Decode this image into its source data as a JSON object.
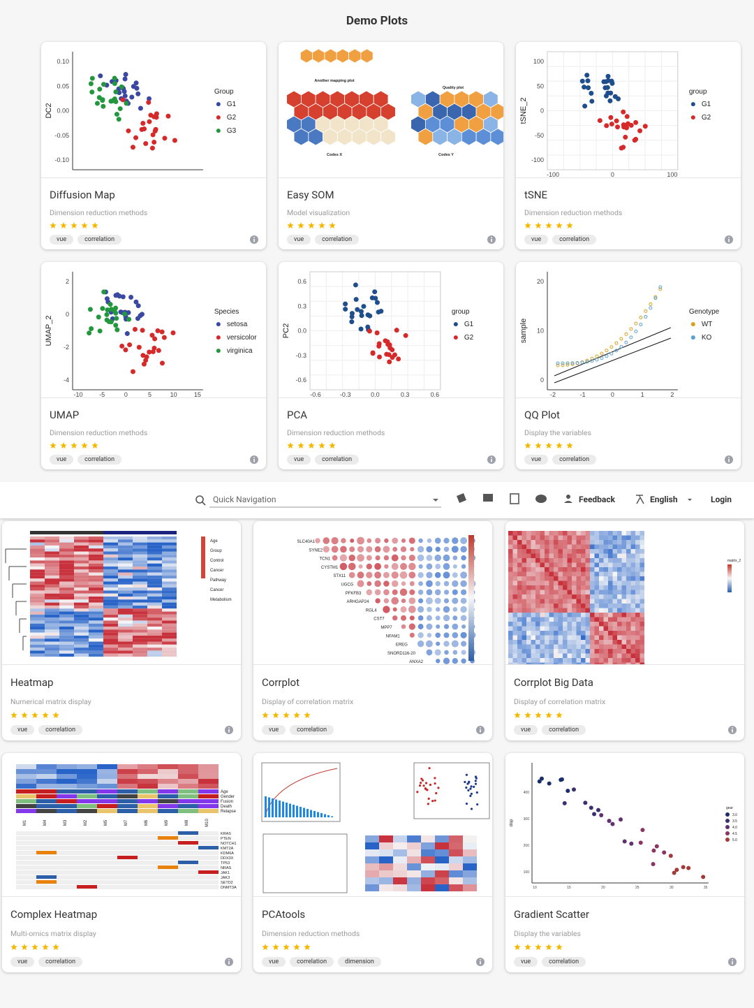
{
  "section_title": "Demo Plots",
  "top_cards": [
    {
      "title": "Diffusion Map",
      "subtitle": "Dimension reduction methods",
      "tags": [
        "vue",
        "correlation"
      ],
      "thumb": {
        "kind": "scatter",
        "ylabel": "DC2",
        "yticks": [
          "0.10",
          "0.05",
          "0.00",
          "-0.05",
          "-0.10"
        ],
        "xticks": [],
        "legend_title": "Group",
        "legend": [
          {
            "label": "G1",
            "color": "#3b48a3"
          },
          {
            "label": "G2",
            "color": "#d62a2a"
          },
          {
            "label": "G3",
            "color": "#23973d"
          }
        ]
      }
    },
    {
      "title": "Easy SOM",
      "subtitle": "Model visualization",
      "tags": [
        "vue",
        "correlation"
      ],
      "thumb": {
        "kind": "som",
        "labels": [
          "Another mapping plot",
          "Quality plot",
          "Codes X",
          "Codes Y"
        ]
      }
    },
    {
      "title": "tSNE",
      "subtitle": "Dimension reduction methods",
      "tags": [
        "vue",
        "correlation"
      ],
      "thumb": {
        "kind": "scatter",
        "grid": true,
        "ylabel": "tSNE_2",
        "yticks": [
          "100",
          "50",
          "0",
          "-50",
          "-100"
        ],
        "xticks": [
          "-100",
          "0",
          "100"
        ],
        "legend_title": "group",
        "legend": [
          {
            "label": "G1",
            "color": "#1f4e8c"
          },
          {
            "label": "G2",
            "color": "#d62a2a"
          }
        ]
      }
    },
    {
      "title": "UMAP",
      "subtitle": "Dimension reduction methods",
      "tags": [
        "vue",
        "correlation"
      ],
      "thumb": {
        "kind": "scatter",
        "ylabel": "UMAP_2",
        "yticks": [
          "2",
          "0",
          "-2",
          "-4"
        ],
        "xticks": [
          "-10",
          "-5",
          "0",
          "5",
          "10",
          "15"
        ],
        "legend_title": "Species",
        "legend": [
          {
            "label": "setosa",
            "color": "#3b48a3"
          },
          {
            "label": "versicolor",
            "color": "#d62a2a"
          },
          {
            "label": "virginica",
            "color": "#23973d"
          }
        ]
      }
    },
    {
      "title": "PCA",
      "subtitle": "Dimension reduction methods",
      "tags": [
        "vue",
        "correlation"
      ],
      "thumb": {
        "kind": "scatter",
        "grid": true,
        "ylabel": "PC2",
        "yticks": [
          "0.6",
          "0.3",
          "0.0",
          "-0.3",
          "-0.6"
        ],
        "xticks": [
          "-0.6",
          "-0.3",
          "0.0",
          "0.3",
          "0.6"
        ],
        "legend_title": "group",
        "legend": [
          {
            "label": "G1",
            "color": "#1f4e8c"
          },
          {
            "label": "G2",
            "color": "#d62a2a"
          }
        ]
      }
    },
    {
      "title": "QQ Plot",
      "subtitle": "Display the variables",
      "tags": [
        "vue",
        "correlation"
      ],
      "thumb": {
        "kind": "scatter",
        "qq": true,
        "ylabel": "sample",
        "yticks": [
          "20",
          "10",
          "0"
        ],
        "xticks": [
          "-2",
          "-1",
          "0",
          "1",
          "2"
        ],
        "legend_title": "Genotype",
        "legend": [
          {
            "label": "WT",
            "color": "#d9a020"
          },
          {
            "label": "KO",
            "color": "#5aa0d0"
          }
        ]
      }
    }
  ],
  "nav": {
    "search": "Quick Navigation",
    "feedback": "Feedback",
    "language": "English",
    "login": "Login"
  },
  "bottom_cards": [
    {
      "title": "Heatmap",
      "subtitle": "Numerical matrix display",
      "tags": [
        "vue",
        "correlation"
      ],
      "thumb": {
        "kind": "heatmap",
        "labels": [
          "Age",
          "Group",
          "Control",
          "Cancer",
          "Pathway",
          "Cancer",
          "Metabolism"
        ]
      }
    },
    {
      "title": "Corrplot",
      "subtitle": "Display of correlation matrix",
      "tags": [
        "vue",
        "correlation"
      ],
      "thumb": {
        "kind": "corrplot",
        "labels": [
          "SLC40A1",
          "SYNE2",
          "TCN1",
          "CYSTM1",
          "STX11",
          "UGCG",
          "PFKFB3",
          "ARHGAP24",
          "RGL4",
          "CST7",
          "MPP7",
          "NFAM1",
          "EREG",
          "SNORD116-20",
          "ANXA2"
        ]
      }
    },
    {
      "title": "Corrplot Big Data",
      "subtitle": "Display of correlation matrix",
      "tags": [
        "vue",
        "correlation"
      ],
      "thumb": {
        "kind": "corrbig",
        "labels": [
          "matrix_2"
        ]
      }
    },
    {
      "title": "Complex Heatmap",
      "subtitle": "Multi-omics matrix display",
      "tags": [
        "vue",
        "correlation"
      ],
      "thumb": {
        "kind": "complex",
        "labels": [
          "Age",
          "Gender",
          "Fusion",
          "Death",
          "Relapse"
        ],
        "columns": [
          "M1",
          "M4",
          "M3",
          "M2",
          "M5",
          "M7",
          "M6",
          "M9",
          "M8",
          "M10"
        ],
        "genes": [
          "KRAS",
          "PTEN",
          "NOTCH1",
          "KMT2A",
          "KDM6A",
          "DDX3X",
          "TP53",
          "NRAS",
          "JAK1",
          "JAK3",
          "SETD2",
          "DNMT3A"
        ]
      }
    },
    {
      "title": "PCAtools",
      "subtitle": "Dimension reduction methods",
      "tags": [
        "vue",
        "correlation",
        "dimension"
      ],
      "thumb": {
        "kind": "pcatools"
      }
    },
    {
      "title": "Gradient Scatter",
      "subtitle": "Display the variables",
      "tags": [
        "vue",
        "correlation"
      ],
      "thumb": {
        "kind": "gradient",
        "ylabel": "disp",
        "yticks": [
          "400",
          "300",
          "200",
          "100"
        ],
        "xticks": [
          "10",
          "15",
          "20",
          "25",
          "30",
          "35"
        ],
        "legend_title": "gear",
        "legend": [
          {
            "label": "3.0",
            "color": "#1b2e6b"
          },
          {
            "label": "3.5",
            "color": "#3d2f6e"
          },
          {
            "label": "4.0",
            "color": "#5f3170"
          },
          {
            "label": "4.5",
            "color": "#8a3560"
          },
          {
            "label": "5.0",
            "color": "#a33a3a"
          }
        ]
      }
    }
  ]
}
